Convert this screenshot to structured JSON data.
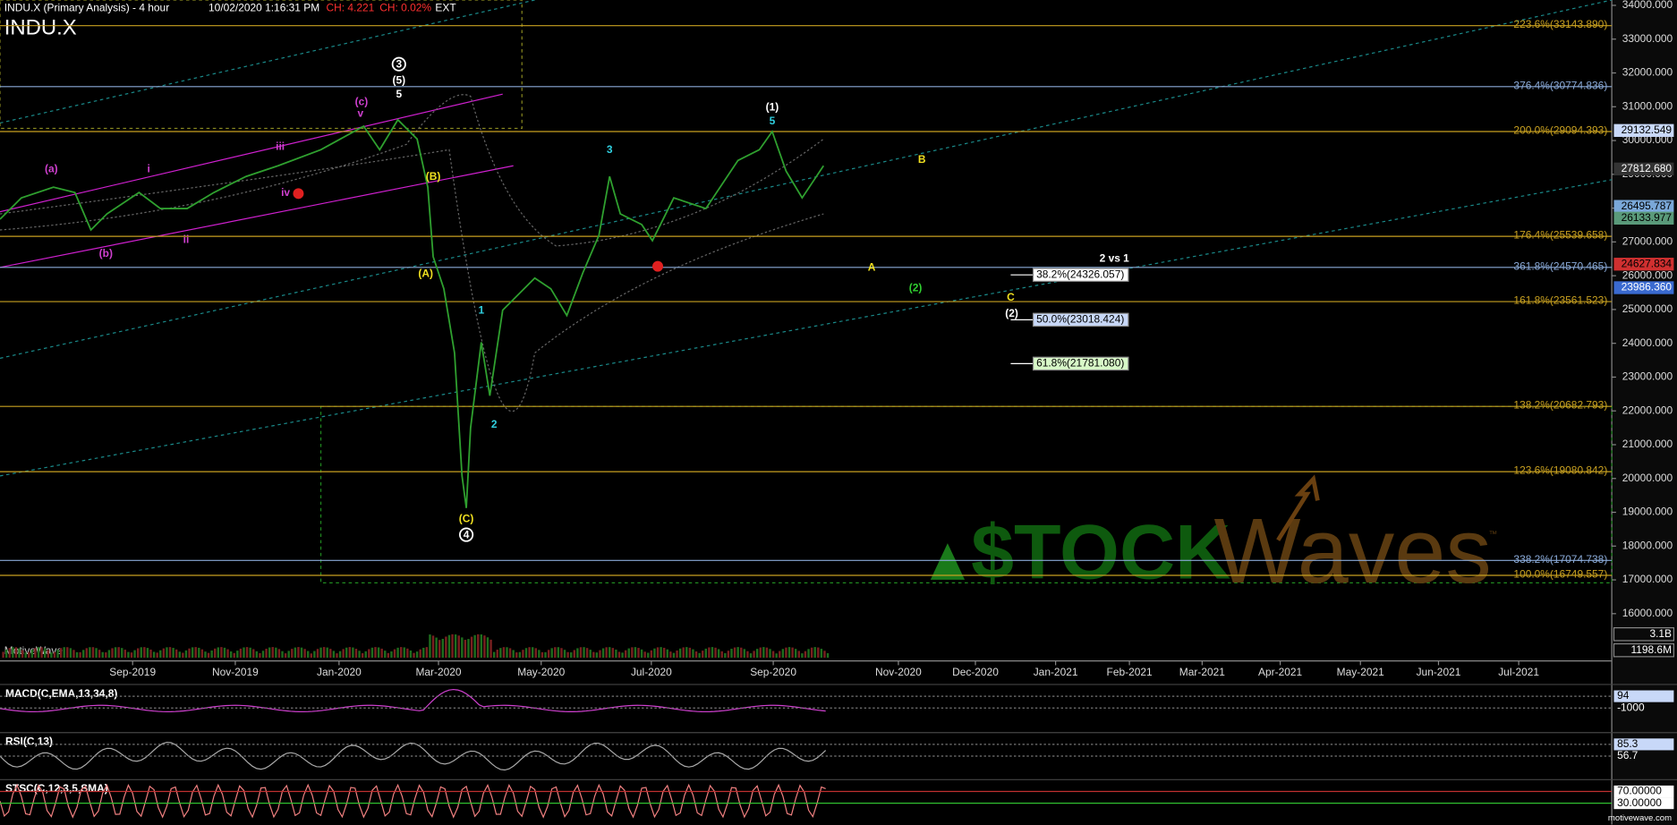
{
  "header": {
    "title": "INDU.X (Primary Analysis) - 4 hour",
    "timestamp": "10/02/2020 1:16:31 PM",
    "change": "CH: 4.221",
    "change_pct": "CH: 0.02%",
    "session": "EXT",
    "symbol": "INDU.X"
  },
  "price_axis": [
    "34000.000",
    "33000.000",
    "32000.000",
    "31000.000",
    "30000.000",
    "29000.000",
    "28000.000",
    "27000.000",
    "26000.000",
    "25000.000",
    "24000.000",
    "23000.000",
    "22000.000",
    "21000.000",
    "20000.000",
    "19000.000",
    "18000.000",
    "17000.000",
    "16000.000"
  ],
  "date_axis": [
    "Sep-2019",
    "Nov-2019",
    "Jan-2020",
    "Mar-2020",
    "May-2020",
    "Jul-2020",
    "Sep-2020",
    "Nov-2020",
    "Dec-2020",
    "Jan-2021",
    "Feb-2021",
    "Mar-2021",
    "Apr-2021",
    "May-2021",
    "Jun-2021",
    "Jul-2021"
  ],
  "fib_levels": [
    "223.6%(33143.890)",
    "376.4%(30774.836)",
    "200.0%(29094.393)",
    "176.4%(25539.658)",
    "361.8%(24570.465)",
    "161.8%(23561.523)",
    "138.2%(20682.793)",
    "123.6%(19080.842)",
    "338.2%(17074.738)",
    "100.0%(16749.557)"
  ],
  "price_markers": [
    "29132.549",
    "27812.680",
    "26495.787",
    "26133.977",
    "24627.834",
    "23986.360"
  ],
  "volume_axis": [
    "3.1B",
    "1198.6M"
  ],
  "retracements": [
    "38.2%(24326.057)",
    "50.0%(23018.424)",
    "61.8%(21781.080)"
  ],
  "wave_labels": [
    {
      "text": "(a)"
    },
    {
      "text": "(b)"
    },
    {
      "text": "i"
    },
    {
      "text": "ii"
    },
    {
      "text": "iii"
    },
    {
      "text": "iv"
    },
    {
      "text": "v"
    },
    {
      "text": "(c)"
    },
    {
      "text": "3",
      "circled": true
    },
    {
      "text": "(5)"
    },
    {
      "text": "5"
    },
    {
      "text": "(B)"
    },
    {
      "text": "(A)"
    },
    {
      "text": "(C)"
    },
    {
      "text": "4",
      "circled": true
    },
    {
      "text": "1"
    },
    {
      "text": "2"
    },
    {
      "text": "3"
    },
    {
      "text": "(1)"
    },
    {
      "text": "5"
    },
    {
      "text": "B"
    },
    {
      "text": "A"
    },
    {
      "text": "(2)"
    },
    {
      "text": "C"
    },
    {
      "text": "(2)"
    }
  ],
  "note": "2 vs 1",
  "watermark": "MotiveWave",
  "logo": {
    "left": "$TOCK",
    "right": "Waves",
    "tm": "™"
  },
  "indicators": [
    {
      "name": "MACD(C,EMA,13,34,8)",
      "values": [
        "94",
        "-1000"
      ]
    },
    {
      "name": "RSI(C,13)",
      "values": [
        "85.3",
        "56.7"
      ]
    },
    {
      "name": "STSC(C,12,3,5,SMA)",
      "values": [
        "70.00000",
        "30.00000"
      ]
    }
  ],
  "footer": "motivewave.com"
}
